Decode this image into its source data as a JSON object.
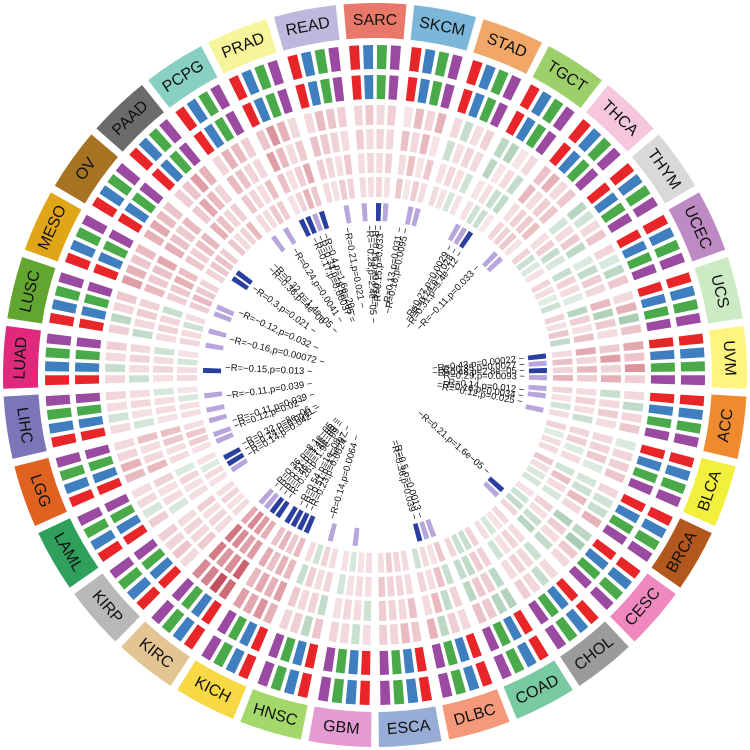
{
  "chart_data": {
    "type": "circular-heatmap",
    "cancers": [
      {
        "name": "SARC",
        "color": "#e8796a"
      },
      {
        "name": "SKCM",
        "color": "#7cb6d8"
      },
      {
        "name": "STAD",
        "color": "#f0a768"
      },
      {
        "name": "TGCT",
        "color": "#9dcf6a"
      },
      {
        "name": "THCA",
        "color": "#f6c7dc"
      },
      {
        "name": "THYM",
        "color": "#d9d9d9"
      },
      {
        "name": "UCEC",
        "color": "#bd8ac3"
      },
      {
        "name": "UCS",
        "color": "#ccebc5"
      },
      {
        "name": "UVM",
        "color": "#fff47d"
      },
      {
        "name": "ACC",
        "color": "#ef8a2e"
      },
      {
        "name": "BLCA",
        "color": "#f2ef3d"
      },
      {
        "name": "BRCA",
        "color": "#b2571d"
      },
      {
        "name": "CESC",
        "color": "#ee88be"
      },
      {
        "name": "CHOL",
        "color": "#9b9b9b"
      },
      {
        "name": "COAD",
        "color": "#79c9a1"
      },
      {
        "name": "DLBC",
        "color": "#f49a7a"
      },
      {
        "name": "ESCA",
        "color": "#97acd6"
      },
      {
        "name": "GBM",
        "color": "#e49bd1"
      },
      {
        "name": "HNSC",
        "color": "#a5d86a"
      },
      {
        "name": "KICH",
        "color": "#f7d945"
      },
      {
        "name": "KIRC",
        "color": "#e3c594"
      },
      {
        "name": "KIRP",
        "color": "#b8b8b8"
      },
      {
        "name": "LAML",
        "color": "#2ea05c"
      },
      {
        "name": "LGG",
        "color": "#e06220"
      },
      {
        "name": "LIHC",
        "color": "#7a76b8"
      },
      {
        "name": "LUAD",
        "color": "#e0287d"
      },
      {
        "name": "LUSC",
        "color": "#63a62f"
      },
      {
        "name": "MESO",
        "color": "#e0a618"
      },
      {
        "name": "OV",
        "color": "#a67323"
      },
      {
        "name": "PAAD",
        "color": "#6b6b6b"
      },
      {
        "name": "PCPG",
        "color": "#88d0c2"
      },
      {
        "name": "PRAD",
        "color": "#f7f59c"
      },
      {
        "name": "READ",
        "color": "#bdb9dc"
      }
    ],
    "track_colors": [
      "#e8262a",
      "#3f7fbf",
      "#4aaa4a",
      "#9a4aa0"
    ],
    "heat_colors": {
      "positive": "#b2182b",
      "negative": "#1b7837",
      "sig_positive": "#b6a6dc",
      "sig_negative": "#2a3fa0"
    },
    "heat_values": [
      [
        0.12,
        0.18,
        0.1,
        0.15
      ],
      [
        0.05,
        0.25,
        0.12,
        0.3
      ],
      [
        0.1,
        -0.2,
        0.08,
        0.14
      ],
      [
        -0.25,
        -0.3,
        0.05,
        0.1
      ],
      [
        0.22,
        0.3,
        0.1,
        0.18
      ],
      [
        -0.28,
        -0.15,
        0.1,
        0.2
      ],
      [
        0.12,
        -0.1,
        -0.25,
        0.18
      ],
      [
        0.1,
        0.3,
        -0.35,
        0.2
      ],
      [
        0.35,
        0.2,
        0.45,
        0.15
      ],
      [
        0.1,
        -0.22,
        0.12,
        0.18
      ],
      [
        -0.1,
        0.12,
        0.15,
        0.2
      ],
      [
        0.12,
        -0.15,
        -0.2,
        0.3
      ],
      [
        -0.25,
        -0.35,
        0.18,
        0.1
      ],
      [
        0.1,
        -0.2,
        0.12,
        0.15
      ],
      [
        -0.3,
        -0.28,
        0.18,
        0.22
      ],
      [
        0.1,
        0.15,
        -0.25,
        0.3
      ],
      [
        0.18,
        0.25,
        0.12,
        0.15
      ],
      [
        0.08,
        -0.18,
        0.1,
        0.12
      ],
      [
        0.2,
        -0.25,
        0.15,
        0.12
      ],
      [
        0.3,
        0.45,
        0.35,
        0.4
      ],
      [
        0.65,
        0.8,
        0.55,
        0.5
      ],
      [
        0.1,
        0.2,
        0.12,
        0.15
      ],
      [
        0.15,
        -0.12,
        0.1,
        0.08
      ],
      [
        0.25,
        0.3,
        0.12,
        0.1
      ],
      [
        0.1,
        -0.15,
        0.08,
        0.12
      ],
      [
        0.12,
        -0.2,
        0.1,
        0.15
      ],
      [
        0.15,
        -0.25,
        0.12,
        0.18
      ],
      [
        0.4,
        0.3,
        0.2,
        0.25
      ],
      [
        0.3,
        0.35,
        0.25,
        0.2
      ],
      [
        0.15,
        0.2,
        0.4,
        0.3
      ],
      [
        0.12,
        0.3,
        0.25,
        0.15
      ],
      [
        0.2,
        0.45,
        0.3,
        0.1
      ],
      [
        0.1,
        0.25,
        0.2,
        0.15
      ]
    ],
    "sig_marks": [
      {
        "c": 0,
        "i": [
          {
            "j": 0,
            "neg": false
          },
          {
            "j": 2,
            "neg": true
          },
          {
            "j": 3,
            "neg": false
          }
        ]
      },
      {
        "c": 1,
        "i": [
          {
            "j": 2,
            "neg": false
          },
          {
            "j": 3,
            "neg": false
          }
        ]
      },
      {
        "c": 3,
        "i": [
          {
            "j": 0,
            "neg": false
          },
          {
            "j": 1,
            "neg": false
          },
          {
            "j": 2,
            "neg": true
          }
        ]
      },
      {
        "c": 4,
        "i": [
          {
            "j": 2,
            "neg": false
          },
          {
            "j": 3,
            "neg": false
          }
        ]
      },
      {
        "c": 8,
        "i": [
          {
            "j": 0,
            "neg": true
          },
          {
            "j": 1,
            "neg": false
          },
          {
            "j": 2,
            "neg": true
          },
          {
            "j": 3,
            "neg": false
          }
        ]
      },
      {
        "c": 9,
        "i": [
          {
            "j": 0,
            "neg": false
          },
          {
            "j": 1,
            "neg": false
          },
          {
            "j": 3,
            "neg": false
          }
        ]
      },
      {
        "c": 12,
        "i": [
          {
            "j": 2,
            "neg": true
          },
          {
            "j": 3,
            "neg": false
          }
        ]
      },
      {
        "c": 15,
        "i": [
          {
            "j": 0,
            "neg": false
          },
          {
            "j": 1,
            "neg": false
          },
          {
            "j": 2,
            "neg": true
          }
        ]
      },
      {
        "c": 17,
        "i": [
          {
            "j": 2,
            "neg": false
          }
        ]
      },
      {
        "c": 18,
        "i": [
          {
            "j": 1,
            "neg": false
          }
        ]
      },
      {
        "c": 19,
        "i": [
          {
            "j": 0,
            "neg": true
          },
          {
            "j": 1,
            "neg": true
          },
          {
            "j": 2,
            "neg": true
          },
          {
            "j": 3,
            "neg": true
          }
        ]
      },
      {
        "c": 20,
        "i": [
          {
            "j": 0,
            "neg": true
          },
          {
            "j": 1,
            "neg": true
          },
          {
            "j": 2,
            "neg": false
          },
          {
            "j": 3,
            "neg": false
          }
        ]
      },
      {
        "c": 22,
        "i": [
          {
            "j": 0,
            "neg": false
          },
          {
            "j": 1,
            "neg": true
          },
          {
            "j": 2,
            "neg": true
          }
        ]
      },
      {
        "c": 23,
        "i": [
          {
            "j": 0,
            "neg": false
          },
          {
            "j": 1,
            "neg": false
          },
          {
            "j": 3,
            "neg": false
          }
        ]
      },
      {
        "c": 24,
        "i": [
          {
            "j": 0,
            "neg": false
          },
          {
            "j": 2,
            "neg": false
          }
        ]
      },
      {
        "c": 25,
        "i": [
          {
            "j": 1,
            "neg": true
          }
        ]
      },
      {
        "c": 26,
        "i": [
          {
            "j": 0,
            "neg": false
          },
          {
            "j": 2,
            "neg": false
          }
        ]
      },
      {
        "c": 27,
        "i": [
          {
            "j": 0,
            "neg": false
          },
          {
            "j": 1,
            "neg": false
          }
        ]
      },
      {
        "c": 28,
        "i": [
          {
            "j": 1,
            "neg": true
          },
          {
            "j": 2,
            "neg": true
          }
        ]
      },
      {
        "c": 30,
        "i": [
          {
            "j": 0,
            "neg": false
          },
          {
            "j": 2,
            "neg": false
          }
        ]
      },
      {
        "c": 31,
        "i": [
          {
            "j": 0,
            "neg": true
          },
          {
            "j": 1,
            "neg": true
          },
          {
            "j": 2,
            "neg": false
          },
          {
            "j": 3,
            "neg": true
          }
        ]
      },
      {
        "c": 32,
        "i": [
          {
            "j": 2,
            "neg": false
          }
        ]
      }
    ],
    "stat_labels": [
      {
        "c": 0,
        "lines": [
          "R=−0.28,p=2.4e−05",
          "R=0.16,p=0.034",
          "R=0.15,p=0.033"
        ]
      },
      {
        "c": 1,
        "lines": [
          "R=0.13,p=0.031",
          "R=0.16,p=0.0095"
        ]
      },
      {
        "c": 3,
        "lines": [
          "R=0.27,p=0.0029",
          "R=0.24,p=0.028",
          "R=0.31,p=3.4e−12"
        ]
      },
      {
        "c": 4,
        "lines": [
          "R=−0.11,p=0.033"
        ]
      },
      {
        "c": 8,
        "lines": [
          "R=0.43,p=0.00022",
          "R=0.35,p=0.0027",
          "R=0.48,p=2.8e−05",
          "R=0.29,p=0.0093"
        ]
      },
      {
        "c": 9,
        "lines": [
          "R=0.14,p=0.012",
          "R=0.16,p=0.0034",
          "R=−0.12,p=0.025"
        ]
      },
      {
        "c": 12,
        "lines": [
          "R=0.21,p=1.6e−05"
        ]
      },
      {
        "c": 15,
        "lines": [
          "R=0.5,p=0.0013",
          "R=0.36,p=0.039"
        ]
      },
      {
        "c": 18,
        "lines": [
          "R=0.14,p=0.0064"
        ]
      },
      {
        "c": 19,
        "lines": [
          "R=0.23,p=0.0024",
          "R=0.51,p=1.5e−07",
          "R=0.54,p=1e−08"
        ]
      },
      {
        "c": 20,
        "lines": [
          "R=0.26,p=1.9e−09",
          "R=0.46,p=7.4e−09",
          "R=0.51,p=1.4e−05",
          "R=0.36,p=8.1e−05"
        ]
      },
      {
        "c": 22,
        "lines": [
          "R=0.14,p=0.042",
          "R=0.24,p=0.0011",
          "R=0.32,p=8e−06"
        ]
      },
      {
        "c": 23,
        "lines": [
          "R=0.12,p=0.02",
          "R=−0.11,p=0.039"
        ]
      },
      {
        "c": 24,
        "lines": [
          "R=−0.11,p=0.039"
        ]
      },
      {
        "c": 25,
        "lines": [
          "R=−0.15,p=0.013"
        ]
      },
      {
        "c": 26,
        "lines": [
          "R=−0.16,p=0.00072"
        ]
      },
      {
        "c": 27,
        "lines": [
          "R=−0.12,p=0.032"
        ]
      },
      {
        "c": 28,
        "lines": [
          "R=0.3,p=0.021"
        ]
      },
      {
        "c": 29,
        "lines": [
          "R=0.36,p=4e−06",
          "R=0.32,p=1.4e−05"
        ]
      },
      {
        "c": 30,
        "lines": [
          "R=0.24,p=0.0041"
        ]
      },
      {
        "c": 31,
        "lines": [
          "R=0.17,p=0.00037",
          "R=0.31,p=8.8e−05",
          "R=0.4,p=1.6e−20"
        ]
      },
      {
        "c": 32,
        "lines": [
          "R=0.21,p=0.021"
        ]
      }
    ]
  }
}
